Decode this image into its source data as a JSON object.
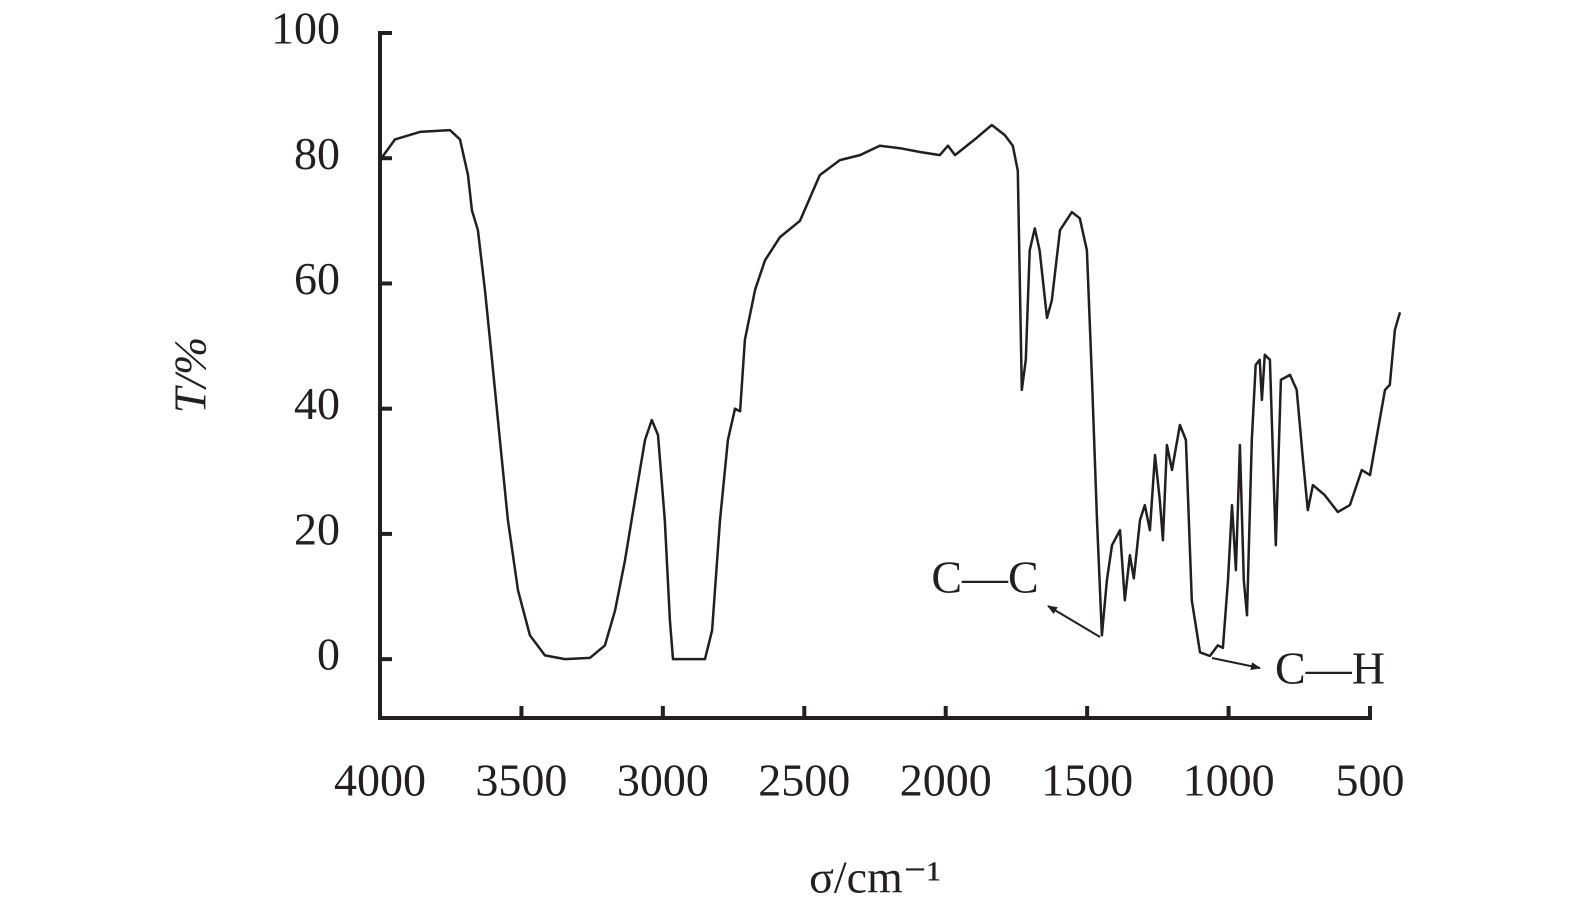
{
  "chart_data": {
    "type": "line",
    "xlabel": "σ/cm⁻¹",
    "ylabel": "T/%",
    "xlim": [
      4000,
      500
    ],
    "xticks": [
      4000,
      3500,
      3000,
      2500,
      2000,
      1500,
      1000,
      500
    ],
    "ylim": [
      -9.4,
      100
    ],
    "yticks": [
      0,
      20,
      40,
      60,
      80,
      100
    ],
    "annotations": [
      "C—C",
      "C—H"
    ],
    "series": [
      {
        "color": "#231f20",
        "x": [
          4000,
          3947,
          3859,
          3753,
          3717,
          3689,
          3675,
          3654,
          3629,
          3604,
          3576,
          3548,
          3512,
          3470,
          3417,
          3346,
          3258,
          3205,
          3169,
          3134,
          3099,
          3063,
          3039,
          3017,
          2993,
          2975,
          2964,
          2851,
          2826,
          2798,
          2770,
          2745,
          2727,
          2710,
          2674,
          2639,
          2586,
          2515,
          2445,
          2374,
          2303,
          2233,
          2162,
          2091,
          2021,
          1992,
          1967,
          1897,
          1837,
          1791,
          1763,
          1745,
          1731,
          1717,
          1703,
          1685,
          1668,
          1642,
          1625,
          1596,
          1554,
          1526,
          1501,
          1483,
          1465,
          1448,
          1430,
          1412,
          1384,
          1367,
          1349,
          1335,
          1313,
          1296,
          1278,
          1260,
          1243,
          1232,
          1218,
          1200,
          1172,
          1151,
          1130,
          1101,
          1066,
          1038,
          1020,
          1002,
          988,
          974,
          960,
          946,
          935,
          918,
          904,
          890,
          882,
          872,
          854,
          833,
          815,
          783,
          759,
          737,
          720,
          702,
          660,
          614,
          571,
          529,
          500,
          472,
          447,
          430,
          412,
          394
        ],
        "values": [
          79.7,
          83,
          84.2,
          84.5,
          83,
          77.3,
          71.7,
          68.5,
          59,
          47.8,
          35,
          22.2,
          11,
          3.8,
          0.6,
          0,
          0.2,
          2.2,
          7.8,
          15.8,
          25.4,
          35,
          38.2,
          35.8,
          22.2,
          6.2,
          0,
          0,
          4.6,
          22.2,
          35,
          40,
          39.6,
          51,
          59,
          63.7,
          67.4,
          70,
          77.3,
          79.7,
          80.5,
          82,
          81.6,
          81,
          80.5,
          82,
          80.5,
          83,
          85.3,
          83.7,
          82,
          78,
          43,
          47.8,
          65.3,
          68.8,
          65.3,
          54.5,
          57.3,
          68.5,
          71.4,
          70.4,
          65.3,
          44.6,
          22.2,
          3.8,
          12.6,
          18.2,
          20.6,
          9.4,
          16.6,
          12.9,
          22.2,
          24.6,
          20.6,
          32.6,
          25.4,
          19,
          34.2,
          30.2,
          37.4,
          35,
          9.4,
          1.1,
          0.5,
          2.2,
          1.8,
          12.6,
          24.6,
          14.2,
          34.2,
          12.6,
          7,
          35,
          47,
          47.8,
          41.4,
          48.6,
          47.8,
          18.2,
          44.6,
          45.4,
          43,
          31.8,
          23.8,
          27.8,
          26.2,
          23.5,
          24.6,
          30.2,
          29.4,
          36.6,
          43,
          43.8,
          52.6,
          55.4
        ]
      }
    ]
  }
}
